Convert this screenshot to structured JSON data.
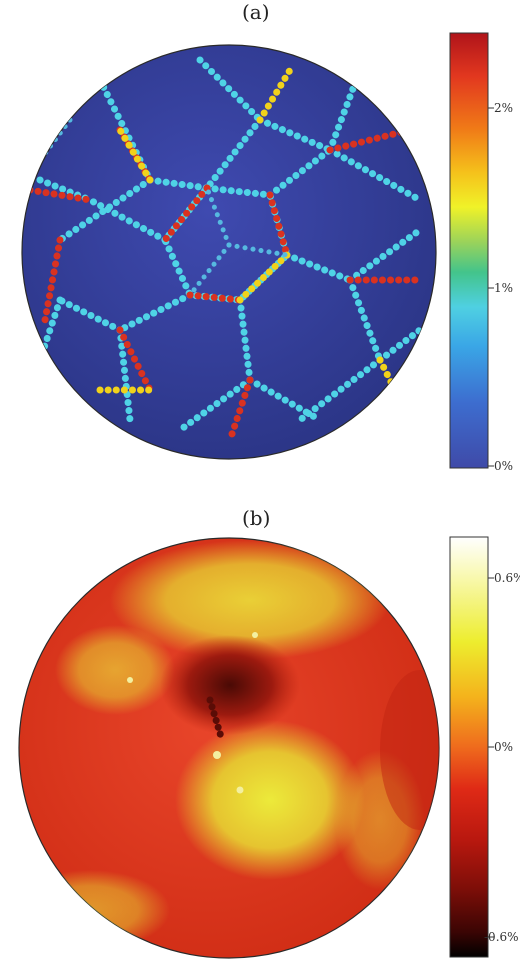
{
  "panels": [
    {
      "label": "(a)",
      "colorbar": {
        "ticks": [
          "2%",
          "1%",
          "0%"
        ],
        "colors": [
          "#b0141a",
          "#e2381f",
          "#f07a17",
          "#f5c11b",
          "#f0f228",
          "#9bd35a",
          "#43c48b",
          "#4fd0e2",
          "#3aa6e6",
          "#3d6dcf",
          "#3f4aa8"
        ]
      },
      "colors": {
        "sphere_base": "#3a46a3",
        "edge_cyan": "#4fd3e6",
        "edge_red": "#d93220",
        "edge_yellow": "#f1d21b"
      }
    },
    {
      "label": "(b)",
      "colorbar": {
        "ticks": [
          "0.6%",
          "0%",
          "-0.6%"
        ],
        "colors": [
          "#ffffff",
          "#f5f58a",
          "#eded2e",
          "#f4b31c",
          "#ef6b1d",
          "#df2a16",
          "#b9180f",
          "#7c0e08",
          "#3b0504",
          "#000000"
        ]
      },
      "colors": {
        "sphere_base": "#e2391b",
        "highlight_yellow": "#e8e237",
        "dark_red": "#6a1008"
      }
    }
  ]
}
